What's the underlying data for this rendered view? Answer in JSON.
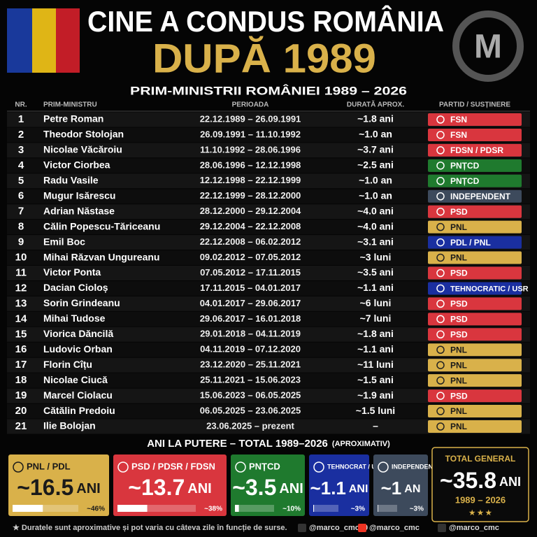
{
  "header": {
    "title": "CINE A CONDUS ROMÂNIA",
    "subtitle": "DUPĂ 1989",
    "logo": "M",
    "section": "PRIM-MINISTRII ROMÂNIEI 1989 – 2026"
  },
  "table": {
    "columns": [
      "NR.",
      "PRIM-MINISTRU",
      "PERIOADA",
      "DURATĂ APROX.",
      "PARTID / SUSȚINERE"
    ],
    "rows": [
      [
        1,
        "Petre Roman",
        "22.12.1989 – 26.09.1991",
        "~1.8 ani",
        "FSN",
        "#d9363e"
      ],
      [
        2,
        "Theodor Stolojan",
        "26.09.1991 – 11.10.1992",
        "~1.0 an",
        "FSN",
        "#d9363e"
      ],
      [
        3,
        "Nicolae Văcăroiu",
        "11.10.1992 – 28.06.1996",
        "~3.7 ani",
        "FDSN / PDSR",
        "#d9363e"
      ],
      [
        4,
        "Victor Ciorbea",
        "28.06.1996 – 12.12.1998",
        "~2.5 ani",
        "PNȚCD",
        "#1f7a2e"
      ],
      [
        5,
        "Radu Vasile",
        "12.12.1998 – 22.12.1999",
        "~1.0 an",
        "PNȚCD",
        "#1f7a2e"
      ],
      [
        6,
        "Mugur Isărescu",
        "22.12.1999 – 28.12.2000",
        "~1.0 an",
        "INDEPENDENT",
        "#3d4a5c"
      ],
      [
        7,
        "Adrian Năstase",
        "28.12.2000 – 29.12.2004",
        "~4.0 ani",
        "PSD",
        "#d9363e"
      ],
      [
        8,
        "Călin Popescu-Tăriceanu",
        "29.12.2004 – 22.12.2008",
        "~4.0 ani",
        "PNL",
        "#d9b14a"
      ],
      [
        9,
        "Emil Boc",
        "22.12.2008 – 06.02.2012",
        "~3.1 ani",
        "PDL / PNL",
        "#1a2fa0"
      ],
      [
        10,
        "Mihai Răzvan Ungureanu",
        "09.02.2012 – 07.05.2012",
        "~3 luni",
        "PNL",
        "#d9b14a"
      ],
      [
        11,
        "Victor Ponta",
        "07.05.2012 – 17.11.2015",
        "~3.5 ani",
        "PSD",
        "#d9363e"
      ],
      [
        12,
        "Dacian Cioloș",
        "17.11.2015 – 04.01.2017",
        "~1.1 ani",
        "TEHNOCRATIC / USR",
        "#1a2fa0"
      ],
      [
        13,
        "Sorin Grindeanu",
        "04.01.2017 – 29.06.2017",
        "~6 luni",
        "PSD",
        "#d9363e"
      ],
      [
        14,
        "Mihai Tudose",
        "29.06.2017 – 16.01.2018",
        "~7 luni",
        "PSD",
        "#d9363e"
      ],
      [
        15,
        "Viorica Dăncilă",
        "29.01.2018 – 04.11.2019",
        "~1.8 ani",
        "PSD",
        "#d9363e"
      ],
      [
        16,
        "Ludovic Orban",
        "04.11.2019 – 07.12.2020",
        "~1.1 ani",
        "PNL",
        "#d9b14a"
      ],
      [
        17,
        "Florin Cîțu",
        "23.12.2020 – 25.11.2021",
        "~11 luni",
        "PNL",
        "#d9b14a"
      ],
      [
        18,
        "Nicolae Ciucă",
        "25.11.2021 – 15.06.2023",
        "~1.5 ani",
        "PNL",
        "#d9b14a"
      ],
      [
        19,
        "Marcel Ciolacu",
        "15.06.2023 – 06.05.2025",
        "~1.9 ani",
        "PSD",
        "#d9363e"
      ],
      [
        20,
        "Cătălin Predoiu",
        "06.05.2025 – 23.06.2025",
        "~1.5 luni",
        "PNL",
        "#d9b14a"
      ],
      [
        21,
        "Ilie Bolojan",
        "23.06.2025 – prezent",
        "–",
        "PNL",
        "#d9b14a"
      ]
    ]
  },
  "summary": {
    "title": "ANI LA PUTERE – TOTAL 1989–2026",
    "note": "(APROXIMATIV)",
    "cards": [
      {
        "label": "PNL / PDL",
        "value": "~16.5",
        "unit": "ANI",
        "share": 46,
        "share_label": "~46%",
        "color": "#d9b14a"
      },
      {
        "label": "PSD / PDSR / FDSN",
        "value": "~13.7",
        "unit": "ANI",
        "share": 38,
        "share_label": "~38%",
        "color": "#d9363e"
      },
      {
        "label": "PNȚCD",
        "value": "~3.5",
        "unit": "ANI",
        "share": 10,
        "share_label": "~10%",
        "color": "#1f7a2e"
      },
      {
        "label": "TEHNOCRAT / USR",
        "value": "~1.1",
        "unit": "ANI",
        "share": 3,
        "share_label": "~3%",
        "color": "#1a2fa0"
      },
      {
        "label": "INDEPENDENT",
        "value": "~1",
        "unit": "AN",
        "share": 3,
        "share_label": "~3%",
        "color": "#3d4a5c"
      }
    ],
    "total": {
      "label": "TOTAL GENERAL",
      "value": "~35.8",
      "unit": "ANI",
      "range": "1989 – 2026"
    }
  },
  "footer": {
    "note": "★ Duratele sunt aproximative și pot varia cu câteva zile în funcție de surse.",
    "socials": [
      "@marco_cmc90",
      "@marco_cmc",
      "@marco_cmc"
    ]
  }
}
